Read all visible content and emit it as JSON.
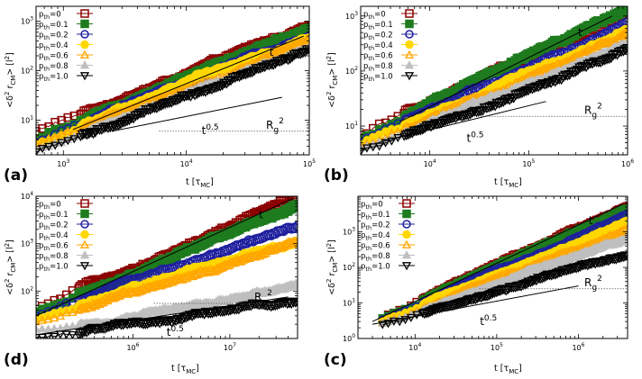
{
  "figure": {
    "colors": {
      "p0": "#8B0000",
      "p01": "#1E7B1E",
      "p02": "#1F1F9E",
      "p04": "#FFD700",
      "p06": "#FFA500",
      "p08": "#BFBFBF",
      "p10": "#000000"
    }
  },
  "chart_data": [
    {
      "panel": "a",
      "panel_label": "(a)",
      "type": "scatter",
      "xscale": "log",
      "yscale": "log",
      "xlim": [
        600,
        100000
      ],
      "ylim": [
        2,
        2000
      ],
      "xlabel": "t [",
      "xlabel_tau": "τ",
      "xlabel_sub": "MC",
      "xlabel_end": "]",
      "ylabel": "<δ",
      "ylabel_sup": "2",
      "ylabel_r": " r",
      "ylabel_sub": "CM",
      "ylabel_end": "> [l",
      "ylabel_sup2": "2",
      "ylabel_close": "]",
      "xticks": [
        {
          "value": 1000,
          "base": "10",
          "exp": "3"
        },
        {
          "value": 10000,
          "base": "10",
          "exp": "4"
        },
        {
          "value": 100000,
          "base": "10",
          "exp": "5"
        }
      ],
      "yticks": [
        {
          "value": 10,
          "base": "10",
          "exp": "1"
        },
        {
          "value": 100,
          "base": "10",
          "exp": "2"
        },
        {
          "value": 1000,
          "base": "10",
          "exp": "3"
        }
      ],
      "annotations": {
        "t": "t",
        "t05_base": "t",
        "t05_exp": "0.5",
        "rg_base": "R",
        "rg_sub": "g",
        "rg_sup": "2"
      },
      "rg2": 6,
      "legend": [
        "p",
        "th",
        "=0",
        "=0.1",
        "=0.2",
        "=0.4",
        "=0.6",
        "=0.8",
        "=1.0"
      ],
      "guide_t": {
        "x": [
          1200,
          90000
        ],
        "y": [
          6.5,
          500
        ]
      },
      "guide_sqrt": {
        "x": [
          2500,
          60000
        ],
        "y": [
          6,
          29
        ]
      },
      "series": [
        {
          "name": "p_th=0",
          "marker": "open-square",
          "x": [
            600,
            100000
          ],
          "y": [
            6,
            720
          ]
        },
        {
          "name": "p_th=0.1",
          "marker": "square",
          "x": [
            600,
            100000
          ],
          "y": [
            4,
            700
          ]
        },
        {
          "name": "p_th=0.2",
          "marker": "open-circle",
          "x": [
            600,
            100000
          ],
          "y": [
            3.5,
            560
          ]
        },
        {
          "name": "p_th=0.4",
          "marker": "circle",
          "x": [
            600,
            100000
          ],
          "y": [
            3.2,
            460
          ]
        },
        {
          "name": "p_th=0.6",
          "marker": "open-triangle",
          "x": [
            600,
            100000
          ],
          "y": [
            3.2,
            380
          ]
        },
        {
          "name": "p_th=0.8",
          "marker": "triangle",
          "x": [
            600,
            100000
          ],
          "y": [
            2.6,
            300
          ]
        },
        {
          "name": "p_th=1.0",
          "marker": "open-triangle-down",
          "x": [
            600,
            100000
          ],
          "y": [
            2.3,
            260
          ]
        }
      ]
    },
    {
      "panel": "b",
      "panel_label": "(b)",
      "type": "scatter",
      "xscale": "log",
      "yscale": "log",
      "xlim": [
        2000,
        1000000
      ],
      "ylim": [
        3,
        1500
      ],
      "xlabel": "t [",
      "xlabel_tau": "τ",
      "xlabel_sub": "MC",
      "xlabel_end": "]",
      "ylabel": "<δ",
      "ylabel_sup": "2",
      "ylabel_r": " r",
      "ylabel_sub": "CM",
      "ylabel_end": "> [l",
      "ylabel_sup2": "2",
      "ylabel_close": "]",
      "xticks": [
        {
          "value": 10000,
          "base": "10",
          "exp": "4"
        },
        {
          "value": 100000,
          "base": "10",
          "exp": "5"
        },
        {
          "value": 1000000,
          "base": "10",
          "exp": "6"
        }
      ],
      "yticks": [
        {
          "value": 10,
          "base": "10",
          "exp": "1"
        },
        {
          "value": 100,
          "base": "10",
          "exp": "2"
        },
        {
          "value": 1000,
          "base": "10",
          "exp": "3"
        }
      ],
      "annotations": {
        "t": "t",
        "t05_base": "t",
        "t05_exp": "0.5",
        "rg_base": "R",
        "rg_sub": "g",
        "rg_sup": "2"
      },
      "rg2": 15,
      "legend": [
        "p",
        "th",
        "=0",
        "=0.1",
        "=0.2",
        "=0.4",
        "=0.6",
        "=0.8",
        "=1.0"
      ],
      "guide_t": {
        "x": [
          5000,
          700000
        ],
        "y": [
          12,
          1000
        ]
      },
      "guide_sqrt": {
        "x": [
          3000,
          150000
        ],
        "y": [
          5,
          28
        ]
      },
      "series": [
        {
          "name": "p_th=0",
          "marker": "open-square",
          "x": [
            2000,
            1000000
          ],
          "y": [
            7,
            1150
          ]
        },
        {
          "name": "p_th=0.1",
          "marker": "square",
          "x": [
            2000,
            1000000
          ],
          "y": [
            6,
            1050
          ]
        },
        {
          "name": "p_th=0.2",
          "marker": "open-circle",
          "x": [
            2000,
            1000000
          ],
          "y": [
            5,
            820
          ]
        },
        {
          "name": "p_th=0.4",
          "marker": "circle",
          "x": [
            2000,
            1000000
          ],
          "y": [
            4.5,
            560
          ]
        },
        {
          "name": "p_th=0.6",
          "marker": "open-triangle",
          "x": [
            2000,
            1000000
          ],
          "y": [
            4.2,
            460
          ]
        },
        {
          "name": "p_th=0.8",
          "marker": "triangle",
          "x": [
            2000,
            1000000
          ],
          "y": [
            3.8,
            280
          ]
        },
        {
          "name": "p_th=1.0",
          "marker": "open-triangle-down",
          "x": [
            2000,
            1000000
          ],
          "y": [
            3.5,
            260
          ]
        }
      ]
    },
    {
      "panel": "d",
      "panel_label": "(d)",
      "type": "scatter",
      "xscale": "log",
      "yscale": "log",
      "xlim": [
        100000,
        50000000
      ],
      "ylim": [
        10,
        10000
      ],
      "xlabel": "t [",
      "xlabel_tau": "τ",
      "xlabel_sub": "MC",
      "xlabel_end": "]",
      "ylabel": "<δ",
      "ylabel_sup": "2",
      "ylabel_r": " r",
      "ylabel_sub": "CM",
      "ylabel_end": "> [l",
      "ylabel_sup2": "2",
      "ylabel_close": "]",
      "xticks": [
        {
          "value": 1000000,
          "base": "10",
          "exp": "6"
        },
        {
          "value": 10000000,
          "base": "10",
          "exp": "7"
        }
      ],
      "yticks": [
        {
          "value": 100,
          "base": "10",
          "exp": "2"
        },
        {
          "value": 1000,
          "base": "10",
          "exp": "3"
        },
        {
          "value": 10000,
          "base": "10",
          "exp": "4"
        }
      ],
      "annotations": {
        "t": "t",
        "t05_base": "t",
        "t05_exp": "0.5",
        "rg_base": "R",
        "rg_sub": "g",
        "rg_sup": "2"
      },
      "rg2": 55,
      "legend": [
        "p",
        "th",
        "=0",
        "=0.1",
        "=0.2",
        "=0.4",
        "=0.6",
        "=0.8",
        "=1.0"
      ],
      "guide_t": {
        "x": [
          100000,
          45000000
        ],
        "y": [
          30,
          9000
        ]
      },
      "guide_sqrt": {
        "x": [
          100000,
          40000000
        ],
        "y": [
          12,
          75
        ]
      },
      "series": [
        {
          "name": "p_th=0",
          "marker": "open-square",
          "x": [
            100000,
            50000000
          ],
          "y": [
            40,
            9500
          ]
        },
        {
          "name": "p_th=0.1",
          "marker": "square",
          "x": [
            100000,
            50000000
          ],
          "y": [
            35,
            7000
          ]
        },
        {
          "name": "p_th=0.2",
          "marker": "open-circle",
          "x": [
            100000,
            50000000
          ],
          "y": [
            30,
            2700
          ]
        },
        {
          "name": "p_th=0.4",
          "marker": "circle",
          "x": [
            100000,
            50000000
          ],
          "y": [
            25,
            1300
          ]
        },
        {
          "name": "p_th=0.6",
          "marker": "open-triangle",
          "x": [
            100000,
            50000000
          ],
          "y": [
            22,
            900
          ]
        },
        {
          "name": "p_th=0.8",
          "marker": "triangle",
          "x": [
            100000,
            50000000
          ],
          "y": [
            15,
            120
          ]
        },
        {
          "name": "p_th=1.0",
          "marker": "open-triangle-down",
          "x": [
            100000,
            50000000
          ],
          "y": [
            10,
            60
          ]
        }
      ]
    },
    {
      "panel": "c",
      "panel_label": "(c)",
      "type": "scatter",
      "xscale": "log",
      "yscale": "log",
      "xlim": [
        2000,
        4000000
      ],
      "ylim": [
        1,
        10000
      ],
      "xlabel": "t [",
      "xlabel_tau": "τ",
      "xlabel_sub": "MC",
      "xlabel_end": "]",
      "ylabel": "<δ",
      "ylabel_sup": "2",
      "ylabel_r": " r",
      "ylabel_sub": "CM",
      "ylabel_end": "> [l",
      "ylabel_sup2": "2",
      "ylabel_close": "]",
      "xticks": [
        {
          "value": 10000,
          "base": "10",
          "exp": "4"
        },
        {
          "value": 100000,
          "base": "10",
          "exp": "5"
        },
        {
          "value": 1000000,
          "base": "10",
          "exp": "6"
        }
      ],
      "yticks": [
        {
          "value": 1,
          "base": "10",
          "exp": "0"
        },
        {
          "value": 10,
          "base": "10",
          "exp": "1"
        },
        {
          "value": 100,
          "base": "10",
          "exp": "2"
        },
        {
          "value": 1000,
          "base": "10",
          "exp": "3"
        }
      ],
      "annotations": {
        "t": "t",
        "t05_base": "t",
        "t05_exp": "0.5",
        "rg_base": "R",
        "rg_sub": "g",
        "rg_sup": "2"
      },
      "rg2": 25,
      "legend": [
        "p",
        "th",
        "=0",
        "=0.1",
        "=0.2",
        "=0.4",
        "=0.6",
        "=0.8",
        "=1.0"
      ],
      "guide_t": {
        "x": [
          3000,
          3500000
        ],
        "y": [
          3,
          6000
        ]
      },
      "guide_sqrt": {
        "x": [
          3000,
          1000000
        ],
        "y": [
          2.5,
          30
        ]
      },
      "series": [
        {
          "name": "p_th=0",
          "marker": "open-square",
          "x": [
            4000,
            4000000
          ],
          "y": [
            3.5,
            4500
          ]
        },
        {
          "name": "p_th=0.1",
          "marker": "square",
          "x": [
            4000,
            4000000
          ],
          "y": [
            3.5,
            4000
          ]
        },
        {
          "name": "p_th=0.2",
          "marker": "open-circle",
          "x": [
            4000,
            4000000
          ],
          "y": [
            3.2,
            2800
          ]
        },
        {
          "name": "p_th=0.4",
          "marker": "circle",
          "x": [
            4000,
            4000000
          ],
          "y": [
            3.0,
            1800
          ]
        },
        {
          "name": "p_th=0.6",
          "marker": "open-triangle",
          "x": [
            4000,
            4000000
          ],
          "y": [
            2.8,
            1200
          ]
        },
        {
          "name": "p_th=0.8",
          "marker": "triangle",
          "x": [
            4000,
            4000000
          ],
          "y": [
            2.6,
            650
          ]
        },
        {
          "name": "p_th=1.0",
          "marker": "open-triangle-down",
          "x": [
            4000,
            4000000
          ],
          "y": [
            2.4,
            250
          ]
        }
      ]
    }
  ]
}
